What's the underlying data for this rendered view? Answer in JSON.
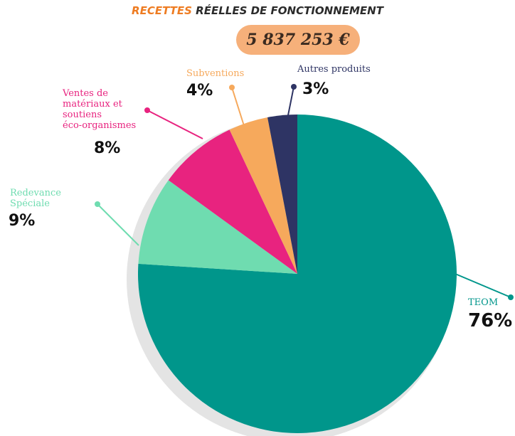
{
  "chart_data": {
    "type": "pie",
    "title_highlight": "RECETTES",
    "title": "RÉELLES DE FONCTIONNEMENT",
    "subtitle": "5 837 253 €",
    "categories": [
      "TEOM",
      "Redevance\nSpéciale",
      "Ventes de\nmatériaux et\nsoutiens\néco-organismes",
      "Subventions",
      "Autres produits"
    ],
    "values": [
      76,
      9,
      8,
      4,
      3
    ],
    "value_labels": [
      "76%",
      "9%",
      "8%",
      "4%",
      "3%"
    ],
    "colors": [
      "#00968b",
      "#6fdcb0",
      "#e8237f",
      "#f6a95c",
      "#2e3464"
    ],
    "title_color": "#ee7c22"
  }
}
